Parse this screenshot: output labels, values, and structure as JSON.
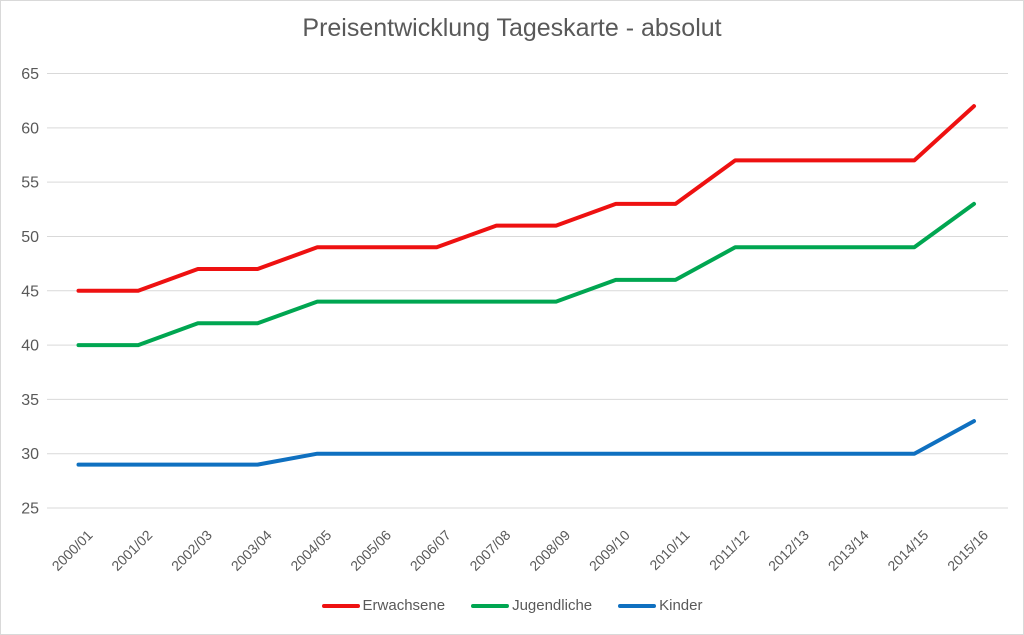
{
  "chart_data": {
    "type": "line",
    "title": "Preisentwicklung Tageskarte - absolut",
    "xlabel": "",
    "ylabel": "",
    "categories": [
      "2000/01",
      "2001/02",
      "2002/03",
      "2003/04",
      "2004/05",
      "2005/06",
      "2006/07",
      "2007/08",
      "2008/09",
      "2009/10",
      "2010/11",
      "2011/12",
      "2012/13",
      "2013/14",
      "2014/15",
      "2015/16"
    ],
    "series": [
      {
        "name": "Erwachsene",
        "color": "#ee1111",
        "values": [
          45,
          45,
          47,
          47,
          49,
          49,
          49,
          51,
          51,
          53,
          53,
          57,
          57,
          57,
          57,
          62
        ]
      },
      {
        "name": "Jugendliche",
        "color": "#00a651",
        "values": [
          40,
          40,
          42,
          42,
          44,
          44,
          44,
          44,
          44,
          46,
          46,
          49,
          49,
          49,
          49,
          53
        ]
      },
      {
        "name": "Kinder",
        "color": "#0f70c0",
        "values": [
          29,
          29,
          29,
          29,
          30,
          30,
          30,
          30,
          30,
          30,
          30,
          30,
          30,
          30,
          30,
          33
        ]
      }
    ],
    "ylim": [
      25,
      65
    ],
    "yticks": [
      25,
      30,
      35,
      40,
      45,
      50,
      55,
      60,
      65
    ],
    "grid": true,
    "legend_position": "bottom"
  },
  "style": {
    "background": "#ffffff",
    "gridline_color": "#d9d9d9",
    "axis_text_color": "#595959",
    "title_color": "#595959",
    "line_width": 4
  }
}
